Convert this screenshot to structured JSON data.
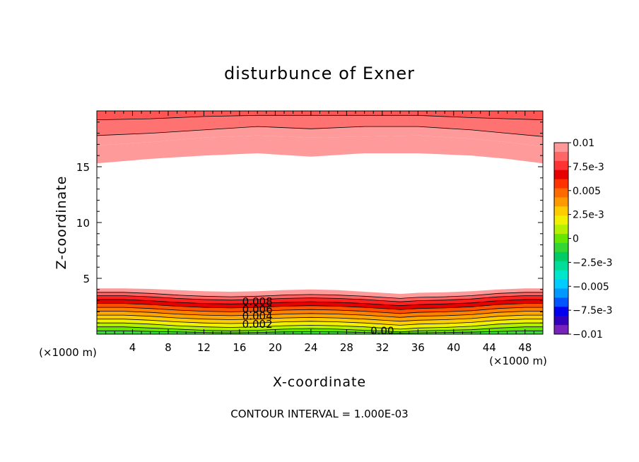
{
  "chart_data": {
    "type": "heatmap",
    "title": "disturbunce of Exner",
    "xlabel": "X-coordinate",
    "ylabel": "Z-coordinate",
    "x_unit": "(×1000 m)",
    "x_unit_right": "(×1000 m)",
    "xlim": [
      0,
      50
    ],
    "ylim": [
      0,
      20
    ],
    "x_ticks": [
      4,
      8,
      12,
      16,
      20,
      24,
      28,
      32,
      36,
      40,
      44,
      48
    ],
    "x_tick_labels": [
      "4",
      "8",
      "12",
      "16",
      "20",
      "24",
      "28",
      "32",
      "36",
      "40",
      "44",
      "48"
    ],
    "y_ticks": [
      5,
      10,
      15
    ],
    "y_tick_labels": [
      "5",
      "10",
      "15"
    ],
    "contour_labels": [
      {
        "text": "0.008",
        "x": 18.0,
        "y": 2.9
      },
      {
        "text": "0.006",
        "x": 18.0,
        "y": 2.2
      },
      {
        "text": "0.004",
        "x": 18.0,
        "y": 1.6
      },
      {
        "text": "0.002",
        "x": 18.0,
        "y": 0.9
      },
      {
        "text": "0.00",
        "x": 32.0,
        "y": 0.3
      }
    ],
    "colorbar": {
      "tick_labels": [
        "0.01",
        "7.5e-3",
        "0.005",
        "2.5e-3",
        "0",
        "−2.5e-3",
        "−0.005",
        "−7.5e-3",
        "−0.01"
      ],
      "levels": [
        0.01,
        0.009,
        0.008,
        0.007,
        0.006,
        0.005,
        0.004,
        0.003,
        0.002,
        0.001,
        0,
        -0.001,
        -0.002,
        -0.003,
        -0.004,
        -0.005,
        -0.006,
        -0.007,
        -0.008,
        -0.009
      ],
      "colors": [
        "#ff9999",
        "#ff6666",
        "#ff3333",
        "#e60000",
        "#ff3300",
        "#ff6a00",
        "#ff9900",
        "#ffcc00",
        "#f0f000",
        "#b4f000",
        "#66e600",
        "#33d633",
        "#00cc66",
        "#00dd99",
        "#00e6cc",
        "#00ccff",
        "#0099ff",
        "#0055ff",
        "#0000ee",
        "#3300bb",
        "#7722bb"
      ]
    },
    "band_fill_colors": {
      "top": [
        "#ff5555",
        "#ff7272",
        "#ff9a9a"
      ],
      "bottom": [
        "#ff9a9a",
        "#ff6060",
        "#ff2020",
        "#e60000",
        "#ff5000",
        "#ff8000",
        "#ffa500",
        "#ffcc00",
        "#f0f000",
        "#b4f000",
        "#66e600",
        "#33dd33"
      ]
    },
    "top_region": {
      "x": [
        0,
        6,
        12,
        18,
        24,
        30,
        36,
        42,
        46,
        50
      ],
      "boundaries": [
        [
          19.2,
          19.3,
          19.5,
          19.6,
          19.6,
          19.6,
          19.6,
          19.4,
          19.3,
          19.2
        ],
        [
          17.8,
          18.0,
          18.3,
          18.6,
          18.4,
          18.6,
          18.6,
          18.3,
          18.0,
          17.7
        ],
        [
          16.9,
          17.2,
          17.6,
          17.8,
          17.6,
          17.7,
          17.8,
          17.5,
          17.2,
          16.8
        ],
        [
          15.3,
          15.7,
          16.0,
          16.2,
          15.9,
          16.2,
          16.2,
          16.0,
          15.7,
          15.3
        ]
      ]
    },
    "bottom_region": {
      "x": [
        0,
        3,
        6,
        9,
        12,
        15,
        18,
        21,
        24,
        27,
        30,
        33,
        34,
        36,
        39,
        42,
        45,
        48,
        50
      ],
      "top": [
        4.1,
        4.1,
        4.05,
        3.95,
        3.85,
        3.8,
        3.85,
        3.95,
        4.0,
        3.95,
        3.8,
        3.65,
        3.6,
        3.7,
        3.75,
        3.85,
        4.0,
        4.1,
        4.1
      ],
      "boundaries": [
        [
          3.75,
          3.75,
          3.65,
          3.5,
          3.4,
          3.35,
          3.4,
          3.5,
          3.55,
          3.5,
          3.4,
          3.25,
          3.2,
          3.3,
          3.35,
          3.45,
          3.65,
          3.75,
          3.75
        ],
        [
          3.45,
          3.45,
          3.35,
          3.2,
          3.1,
          3.05,
          3.1,
          3.2,
          3.25,
          3.2,
          3.1,
          2.95,
          2.9,
          3.0,
          3.05,
          3.15,
          3.35,
          3.45,
          3.45
        ],
        [
          3.1,
          3.1,
          3.0,
          2.85,
          2.75,
          2.7,
          2.75,
          2.85,
          2.9,
          2.85,
          2.75,
          2.6,
          2.55,
          2.65,
          2.7,
          2.8,
          3.0,
          3.1,
          3.1
        ],
        [
          2.75,
          2.75,
          2.65,
          2.5,
          2.4,
          2.35,
          2.4,
          2.5,
          2.55,
          2.5,
          2.4,
          2.25,
          2.2,
          2.3,
          2.35,
          2.45,
          2.65,
          2.75,
          2.75
        ],
        [
          2.4,
          2.4,
          2.3,
          2.15,
          2.05,
          2.0,
          2.05,
          2.15,
          2.2,
          2.15,
          2.05,
          1.9,
          1.85,
          1.95,
          2.0,
          2.1,
          2.3,
          2.4,
          2.4
        ],
        [
          2.05,
          2.05,
          1.95,
          1.8,
          1.7,
          1.65,
          1.7,
          1.8,
          1.85,
          1.8,
          1.7,
          1.55,
          1.5,
          1.6,
          1.65,
          1.75,
          1.95,
          2.05,
          2.05
        ],
        [
          1.7,
          1.7,
          1.6,
          1.45,
          1.35,
          1.3,
          1.35,
          1.45,
          1.5,
          1.45,
          1.35,
          1.2,
          1.15,
          1.25,
          1.3,
          1.4,
          1.6,
          1.7,
          1.7
        ],
        [
          1.35,
          1.35,
          1.25,
          1.1,
          1.0,
          0.95,
          1.0,
          1.1,
          1.15,
          1.1,
          1.0,
          0.85,
          0.8,
          0.9,
          0.95,
          1.05,
          1.25,
          1.35,
          1.35
        ],
        [
          1.0,
          1.0,
          0.9,
          0.75,
          0.65,
          0.6,
          0.65,
          0.75,
          0.8,
          0.75,
          0.65,
          0.5,
          0.45,
          0.55,
          0.6,
          0.7,
          0.9,
          1.0,
          1.0
        ],
        [
          0.65,
          0.65,
          0.55,
          0.45,
          0.35,
          0.3,
          0.35,
          0.45,
          0.5,
          0.45,
          0.35,
          0.25,
          0.2,
          0.3,
          0.35,
          0.4,
          0.55,
          0.65,
          0.65
        ],
        [
          0.3,
          0.3,
          0.25,
          0.2,
          0.15,
          0.12,
          0.15,
          0.2,
          0.22,
          0.2,
          0.15,
          0.1,
          0.08,
          0.12,
          0.15,
          0.18,
          0.25,
          0.3,
          0.3
        ]
      ]
    }
  },
  "footer": {
    "contour_interval": "CONTOUR INTERVAL = 1.000E-03"
  }
}
